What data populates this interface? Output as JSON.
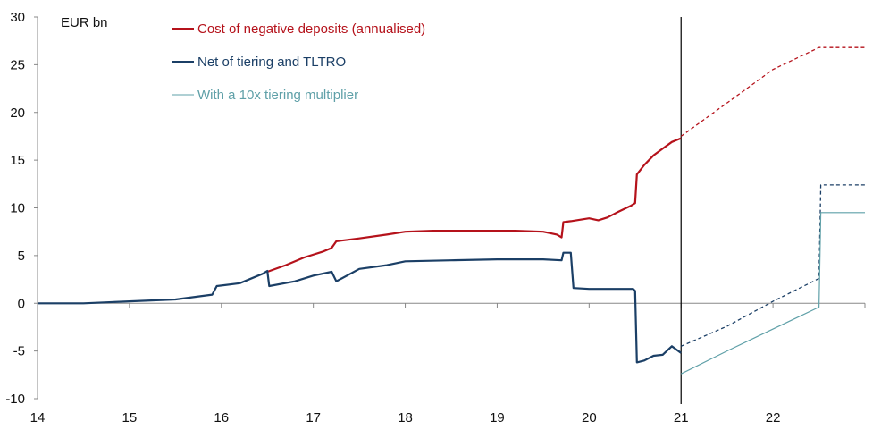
{
  "chart_data": {
    "type": "line",
    "unit_label": "EUR bn",
    "x_ticks": [
      "14",
      "15",
      "16",
      "17",
      "18",
      "19",
      "20",
      "21",
      "22"
    ],
    "y_ticks": [
      "30",
      "25",
      "20",
      "15",
      "10",
      "5",
      "0",
      "-5",
      "-10"
    ],
    "xlim": [
      14,
      23
    ],
    "ylim": [
      -10,
      30
    ],
    "vertical_marker_x": 21,
    "colors": {
      "red": "#b5121b",
      "navy": "#1b3f66",
      "teal": "#5fa0a8",
      "axis": "#888888"
    },
    "series": [
      {
        "name": "Cost of negative deposits (annualised)",
        "color": "#b5121b",
        "style": "solid",
        "x": [
          16.5,
          16.7,
          16.9,
          17.1,
          17.2,
          17.25,
          17.5,
          17.8,
          18.0,
          18.3,
          18.6,
          18.9,
          19.2,
          19.5,
          19.65,
          19.7,
          19.72,
          19.8,
          20.0,
          20.1,
          20.2,
          20.3,
          20.45,
          20.5,
          20.52,
          20.6,
          20.7,
          20.8,
          20.9,
          21.0
        ],
        "y": [
          3.3,
          4.0,
          4.8,
          5.4,
          5.8,
          6.5,
          6.8,
          7.2,
          7.5,
          7.6,
          7.6,
          7.6,
          7.6,
          7.5,
          7.2,
          6.9,
          8.5,
          8.6,
          8.9,
          8.7,
          9.0,
          9.5,
          10.2,
          10.5,
          13.5,
          14.5,
          15.5,
          16.2,
          16.9,
          17.3
        ]
      },
      {
        "name": "",
        "color": "#b5121b",
        "style": "dashed",
        "x": [
          21.0,
          21.5,
          22.0,
          22.5,
          23.0
        ],
        "y": [
          17.5,
          21.0,
          24.5,
          26.8,
          26.8
        ]
      },
      {
        "name": "Net of tiering and TLTRO",
        "color": "#1b3f66",
        "style": "solid",
        "x": [
          14.0,
          14.5,
          15.0,
          15.5,
          15.9,
          15.95,
          16.2,
          16.45,
          16.5,
          16.52,
          16.8,
          17.0,
          17.2,
          17.25,
          17.5,
          17.8,
          18.0,
          18.5,
          19.0,
          19.5,
          19.7,
          19.72,
          19.8,
          19.83,
          20.0,
          20.3,
          20.48,
          20.5,
          20.52,
          20.6,
          20.7,
          20.8,
          20.9,
          21.0
        ],
        "y": [
          0.0,
          0.0,
          0.2,
          0.4,
          0.9,
          1.8,
          2.1,
          3.1,
          3.4,
          1.8,
          2.3,
          2.9,
          3.3,
          2.3,
          3.6,
          4.0,
          4.4,
          4.5,
          4.6,
          4.6,
          4.5,
          5.3,
          5.3,
          1.6,
          1.5,
          1.5,
          1.5,
          1.3,
          -6.2,
          -6.0,
          -5.5,
          -5.4,
          -4.5,
          -5.2
        ]
      },
      {
        "name": "",
        "color": "#1b3f66",
        "style": "dashed",
        "x": [
          21.0,
          21.5,
          22.0,
          22.5,
          22.52,
          23.0
        ],
        "y": [
          -4.5,
          -2.4,
          0.2,
          2.6,
          12.4,
          12.4
        ]
      },
      {
        "name": "With a 10x tiering multiplier",
        "color": "#5fa0a8",
        "style": "solid",
        "x": [
          21.0,
          21.5,
          22.0,
          22.5,
          22.52,
          23.0
        ],
        "y": [
          -7.4,
          -5.0,
          -2.7,
          -0.4,
          9.5,
          9.5
        ]
      }
    ],
    "legend": [
      {
        "label": "Cost of negative deposits (annualised)",
        "color": "#b5121b",
        "weight": 2
      },
      {
        "label": "Net of tiering and TLTRO",
        "color": "#1b3f66",
        "weight": 2
      },
      {
        "label": "With a 10x tiering multiplier",
        "color": "#5fa0a8",
        "weight": 1
      }
    ]
  }
}
